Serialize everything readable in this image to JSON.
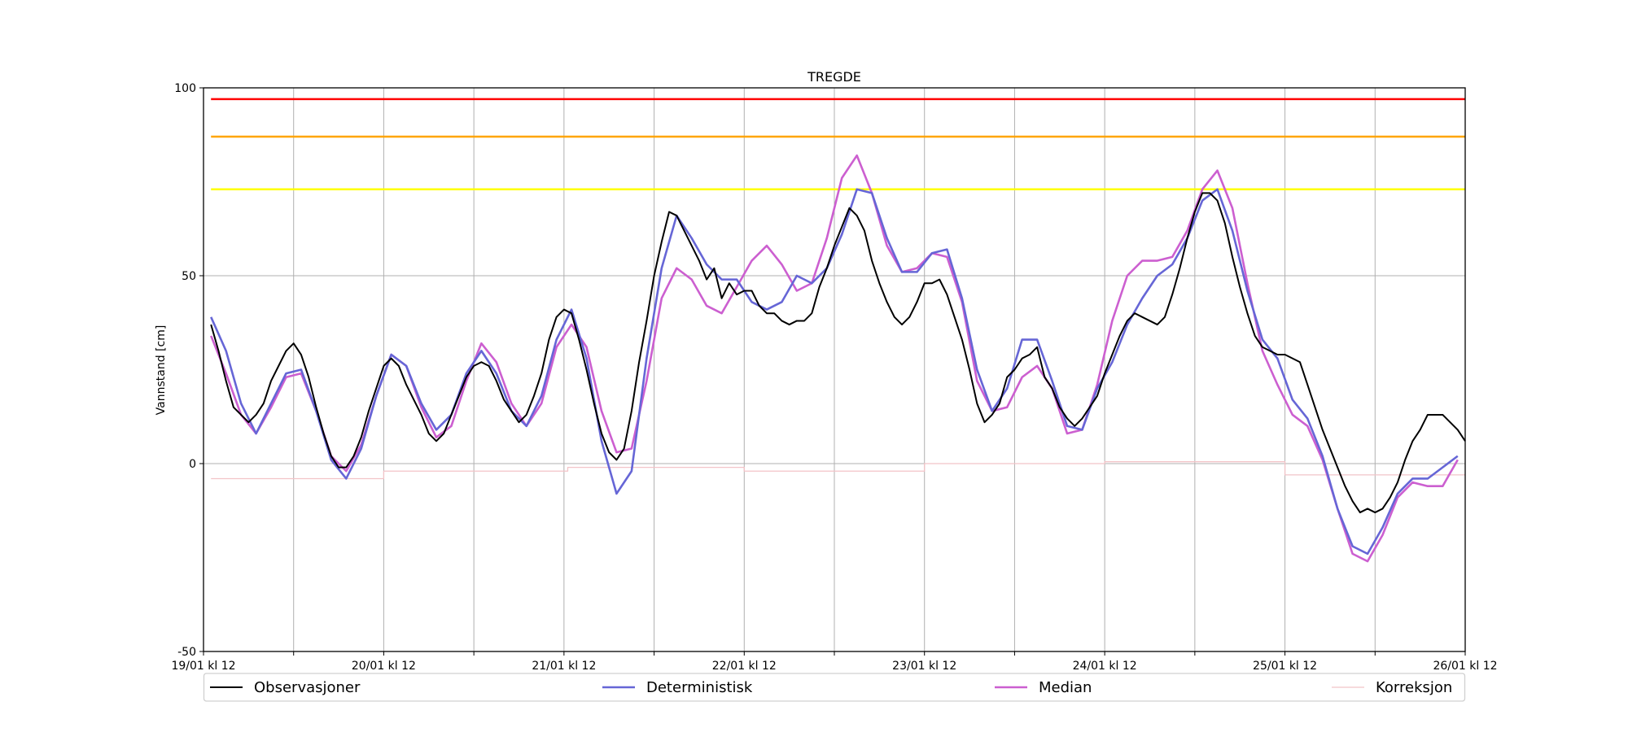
{
  "chart_data": {
    "type": "line",
    "title": "TREGDE",
    "xlabel": "",
    "ylabel": "Vannstand [cm]",
    "ylim": [
      -50,
      100
    ],
    "xlim_hours": [
      0,
      168
    ],
    "yticks": [
      -50,
      0,
      50,
      100
    ],
    "xticks": [
      {
        "hour": 0,
        "label": "19/01 kl 12"
      },
      {
        "hour": 24,
        "label": "20/01 kl 12"
      },
      {
        "hour": 48,
        "label": "21/01 kl 12"
      },
      {
        "hour": 72,
        "label": "22/01 kl 12"
      },
      {
        "hour": 96,
        "label": "23/01 kl 12"
      },
      {
        "hour": 120,
        "label": "24/01 kl 12"
      },
      {
        "hour": 144,
        "label": "25/01 kl 12"
      },
      {
        "hour": 168,
        "label": "26/01 kl 12"
      }
    ],
    "minor_xtick_step_hours": 12,
    "grid": true,
    "legend_placement": "below",
    "thresholds": [
      {
        "value": 97,
        "color": "#ff0000"
      },
      {
        "value": 87,
        "color": "#ffa500"
      },
      {
        "value": 73,
        "color": "#ffff00"
      }
    ],
    "series": [
      {
        "name": "Observasjoner",
        "color": "#000000",
        "x_start": 1,
        "x_step": 1,
        "values": [
          37,
          30,
          22,
          15,
          13,
          11,
          13,
          16,
          22,
          26,
          30,
          32,
          29,
          23,
          15,
          8,
          2,
          -1,
          -1,
          2,
          7,
          14,
          20,
          26,
          28,
          26,
          21,
          17,
          13,
          8,
          6,
          8,
          13,
          18,
          23,
          26,
          27,
          26,
          22,
          17,
          14,
          11,
          13,
          18,
          24,
          33,
          39,
          41,
          40,
          33,
          25,
          16,
          8,
          3,
          1,
          4,
          14,
          27,
          38,
          50,
          59,
          67,
          66,
          62,
          58,
          54,
          49,
          52,
          44,
          48,
          45,
          46,
          46,
          42,
          40,
          40,
          38,
          37,
          38,
          38,
          40,
          47,
          52,
          58,
          63,
          68,
          66,
          62,
          54,
          48,
          43,
          39,
          37,
          39,
          43,
          48,
          48,
          49,
          45,
          39,
          33,
          25,
          16,
          11,
          13,
          16,
          23,
          25,
          28,
          29,
          31,
          23,
          20,
          15,
          12,
          10,
          12,
          15,
          18,
          24,
          29,
          34,
          38,
          40,
          39,
          38,
          37,
          39,
          45,
          52,
          60,
          67,
          72,
          72,
          70,
          64,
          55,
          47,
          40,
          34,
          31,
          30,
          29,
          29,
          28,
          27,
          21,
          15,
          9,
          4,
          -1,
          -6,
          -10,
          -13,
          -12,
          -13,
          -12,
          -9,
          -5,
          1,
          6,
          9,
          13,
          13,
          13,
          11,
          9,
          6
        ]
      },
      {
        "name": "Deterministisk",
        "color": "#6666d6",
        "x_start": 1,
        "x_step": 2,
        "values": [
          39,
          30,
          16,
          8,
          16,
          24,
          25,
          14,
          1,
          -4,
          4,
          18,
          29,
          26,
          16,
          9,
          13,
          24,
          30,
          24,
          14,
          10,
          18,
          33,
          41,
          28,
          6,
          -8,
          -2,
          28,
          52,
          66,
          60,
          53,
          49,
          49,
          43,
          41,
          43,
          50,
          48,
          52,
          61,
          73,
          72,
          60,
          51,
          51,
          56,
          57,
          44,
          25,
          14,
          20,
          33,
          33,
          22,
          10,
          9,
          20,
          27,
          37,
          44,
          50,
          53,
          60,
          70,
          73,
          62,
          46,
          33,
          28,
          17,
          12,
          2,
          -12,
          -22,
          -24,
          -17,
          -8,
          -4,
          -4,
          -1,
          2
        ]
      },
      {
        "name": "Median",
        "color": "#cc5fd0",
        "x_start": 1,
        "x_step": 2,
        "values": [
          34,
          24,
          13,
          8,
          15,
          23,
          24,
          14,
          2,
          -2,
          5,
          18,
          29,
          26,
          15,
          7,
          10,
          22,
          32,
          27,
          16,
          10,
          16,
          31,
          37,
          31,
          14,
          3,
          4,
          22,
          44,
          52,
          49,
          42,
          40,
          47,
          54,
          58,
          53,
          46,
          48,
          60,
          76,
          82,
          72,
          58,
          51,
          52,
          56,
          55,
          43,
          22,
          14,
          15,
          23,
          26,
          20,
          8,
          9,
          21,
          38,
          50,
          54,
          54,
          55,
          62,
          73,
          78,
          68,
          48,
          30,
          21,
          13,
          10,
          1,
          -12,
          -24,
          -26,
          -19,
          -9,
          -5,
          -6,
          -6,
          1
        ]
      },
      {
        "name": "Korreksjon",
        "color": "#f2c4c8",
        "steps": [
          {
            "from": 1,
            "to": 24,
            "value": -4
          },
          {
            "from": 24,
            "to": 48.5,
            "value": -2
          },
          {
            "from": 48.5,
            "to": 72,
            "value": -1
          },
          {
            "from": 72,
            "to": 96,
            "value": -2
          },
          {
            "from": 96,
            "to": 120,
            "value": 0
          },
          {
            "from": 120,
            "to": 144,
            "value": 0.5
          },
          {
            "from": 144,
            "to": 168,
            "value": -3
          }
        ]
      }
    ]
  }
}
